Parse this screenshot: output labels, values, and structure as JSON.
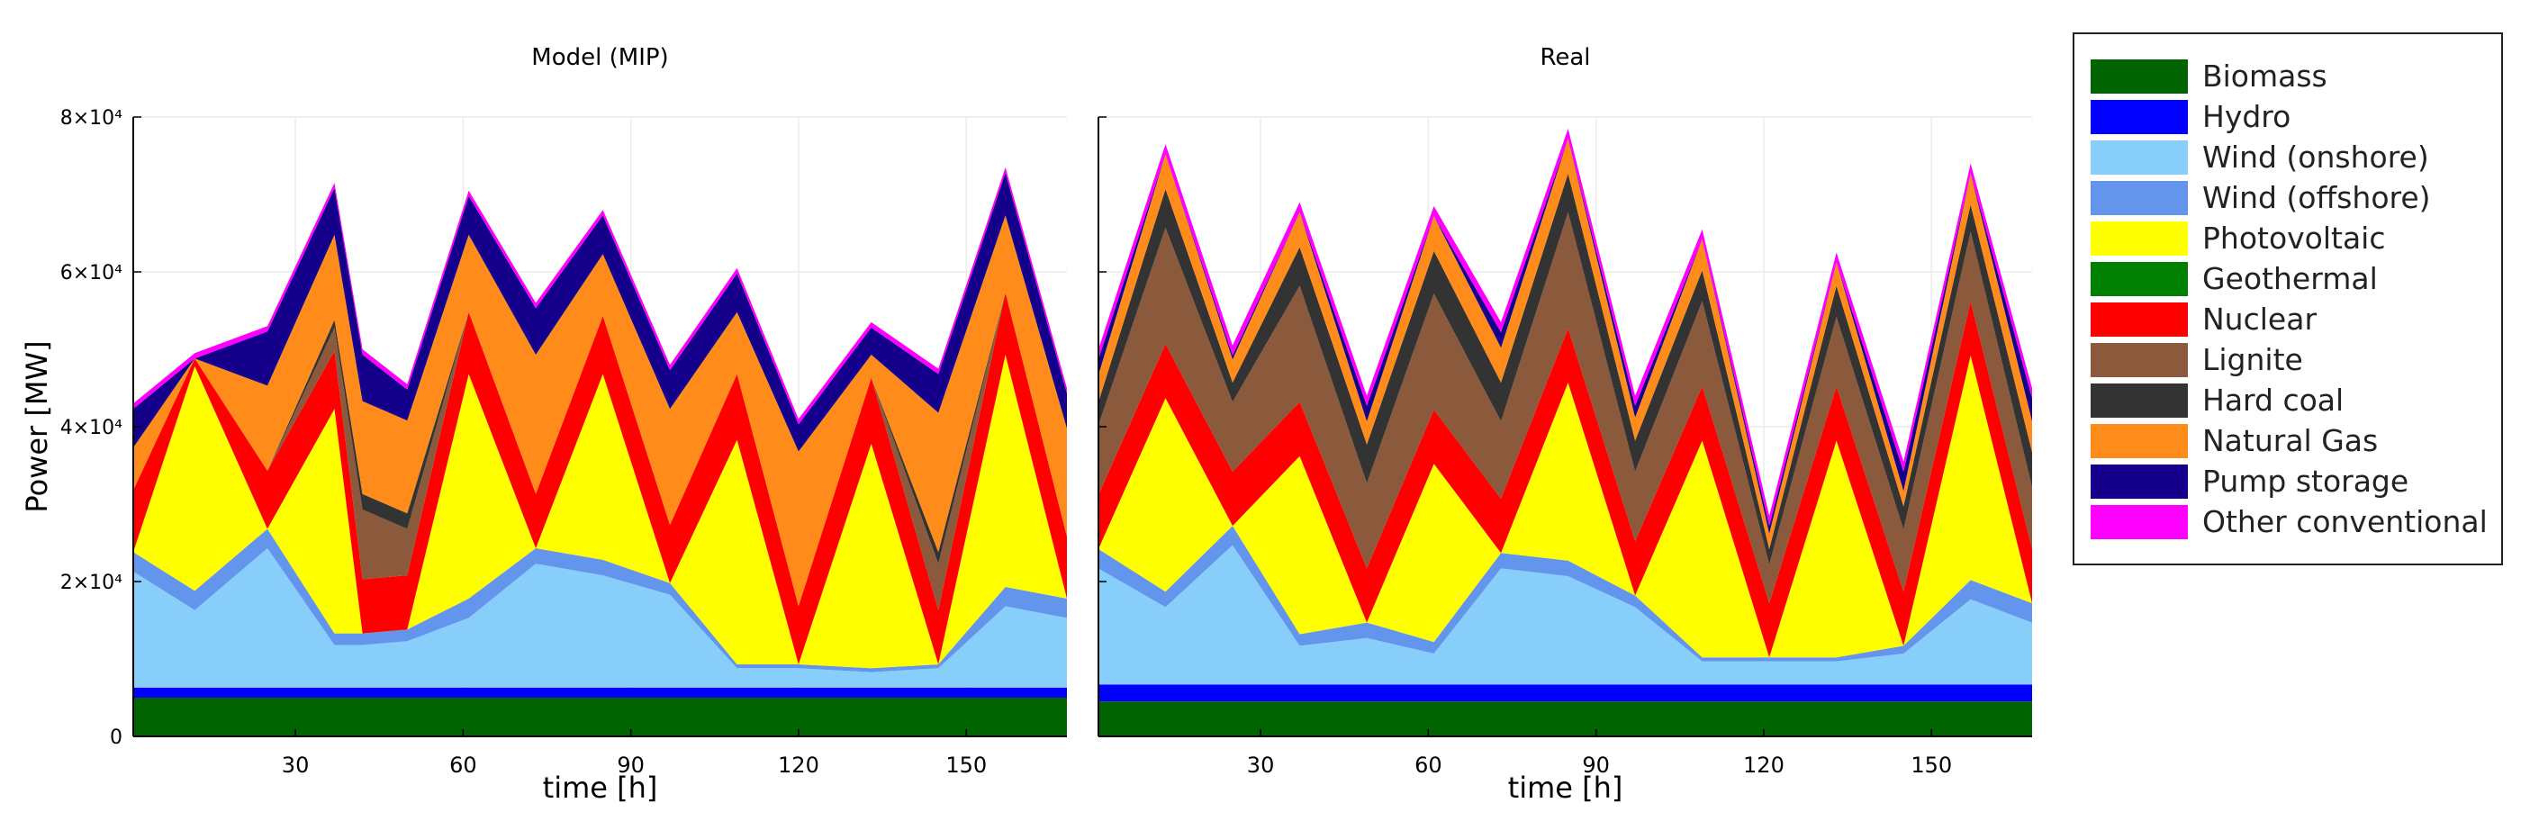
{
  "chart_data": [
    {
      "type": "area",
      "title": "Model (MIP)",
      "xlabel": "time [h]",
      "ylabel": "Power [MW]",
      "ylim": [
        0,
        80000
      ],
      "xlim": [
        1,
        168
      ],
      "x_ticks": [
        30,
        60,
        90,
        120,
        150
      ],
      "y_ticks": [
        0,
        20000,
        40000,
        60000,
        80000
      ],
      "y_tick_labels": [
        "0",
        "2×10⁴",
        "4×10⁴",
        "6×10⁴",
        "8×10⁴"
      ],
      "grid": true,
      "stacked": true,
      "x": [
        1,
        12,
        25,
        37,
        42,
        50,
        61,
        73,
        85,
        97,
        109,
        120,
        133,
        145,
        157,
        168
      ],
      "series": [
        {
          "name": "Biomass",
          "values": [
            5000,
            5000,
            5000,
            5000,
            5000,
            5000,
            5000,
            5000,
            5000,
            5000,
            5000,
            5000,
            5000,
            5000,
            5000,
            5000
          ]
        },
        {
          "name": "Hydro",
          "values": [
            1300,
            1300,
            1300,
            1300,
            1300,
            1300,
            1300,
            1300,
            1300,
            1300,
            1300,
            1300,
            1300,
            1300,
            1300,
            1300
          ]
        },
        {
          "name": "Wind (onshore)",
          "values": [
            15000,
            10000,
            18000,
            5500,
            5500,
            6000,
            9000,
            16000,
            14500,
            12000,
            2500,
            2500,
            2000,
            2500,
            10500,
            9000
          ]
        },
        {
          "name": "Wind (offshore)",
          "values": [
            2500,
            2500,
            2500,
            1500,
            1500,
            1500,
            2500,
            2000,
            2000,
            1500,
            500,
            500,
            500,
            500,
            2500,
            2500
          ]
        },
        {
          "name": "Photovoltaic",
          "values": [
            0,
            29000,
            0,
            29000,
            0,
            0,
            29000,
            0,
            24000,
            0,
            29000,
            0,
            29000,
            0,
            30000,
            0
          ]
        },
        {
          "name": "Geothermal",
          "values": [
            0,
            0,
            0,
            0,
            0,
            0,
            0,
            0,
            0,
            0,
            0,
            0,
            0,
            0,
            0,
            0
          ]
        },
        {
          "name": "Nuclear",
          "values": [
            8000,
            1000,
            7500,
            7500,
            7000,
            7000,
            8000,
            7000,
            7500,
            7500,
            8500,
            7500,
            8500,
            7000,
            8000,
            8000
          ]
        },
        {
          "name": "Lignite",
          "values": [
            0,
            0,
            0,
            3000,
            9000,
            6000,
            0,
            0,
            0,
            0,
            0,
            0,
            0,
            6000,
            0,
            0
          ]
        },
        {
          "name": "Hard coal",
          "values": [
            0,
            0,
            0,
            1000,
            2000,
            2000,
            0,
            0,
            0,
            0,
            0,
            0,
            0,
            1500,
            0,
            0
          ]
        },
        {
          "name": "Natural Gas",
          "values": [
            5500,
            0,
            11000,
            11000,
            12000,
            12000,
            10000,
            18000,
            8000,
            15000,
            8000,
            20000,
            3000,
            18000,
            10000,
            14000
          ]
        },
        {
          "name": "Pump storage",
          "values": [
            5000,
            0,
            7000,
            6000,
            6000,
            4000,
            5000,
            6000,
            5000,
            5000,
            5000,
            3500,
            3500,
            5000,
            5500,
            4500
          ]
        },
        {
          "name": "Other conventional",
          "values": [
            700,
            700,
            700,
            700,
            700,
            700,
            700,
            700,
            700,
            700,
            700,
            700,
            700,
            700,
            700,
            700
          ]
        }
      ]
    },
    {
      "type": "area",
      "title": "Real",
      "xlabel": "time [h]",
      "ylabel": "",
      "ylim": [
        0,
        80000
      ],
      "xlim": [
        1,
        168
      ],
      "x_ticks": [
        30,
        60,
        90,
        120,
        150
      ],
      "y_ticks": [
        0,
        20000,
        40000,
        60000,
        80000
      ],
      "y_tick_labels": [],
      "grid": true,
      "stacked": true,
      "x": [
        1,
        13,
        25,
        37,
        49,
        61,
        73,
        85,
        97,
        109,
        121,
        133,
        145,
        157,
        168
      ],
      "series": [
        {
          "name": "Biomass",
          "values": [
            4500,
            4500,
            4500,
            4500,
            4500,
            4500,
            4500,
            4500,
            4500,
            4500,
            4500,
            4500,
            4500,
            4500,
            4500
          ]
        },
        {
          "name": "Hydro",
          "values": [
            2200,
            2200,
            2200,
            2200,
            2200,
            2200,
            2200,
            2200,
            2200,
            2200,
            2200,
            2200,
            2200,
            2200,
            2200
          ]
        },
        {
          "name": "Wind (onshore)",
          "values": [
            15000,
            10000,
            18000,
            5000,
            6000,
            4000,
            15000,
            14000,
            10000,
            3000,
            3000,
            3000,
            4000,
            11000,
            8000
          ]
        },
        {
          "name": "Wind (offshore)",
          "values": [
            2500,
            2000,
            2500,
            1500,
            2000,
            1500,
            2000,
            2000,
            1500,
            500,
            500,
            500,
            1000,
            2500,
            2500
          ]
        },
        {
          "name": "Photovoltaic",
          "values": [
            0,
            25000,
            0,
            23000,
            0,
            23000,
            0,
            23000,
            0,
            28000,
            0,
            28000,
            0,
            29000,
            0
          ]
        },
        {
          "name": "Geothermal",
          "values": [
            0,
            0,
            0,
            0,
            0,
            0,
            0,
            0,
            0,
            0,
            0,
            0,
            0,
            0,
            0
          ]
        },
        {
          "name": "Nuclear",
          "values": [
            7000,
            7000,
            7000,
            7000,
            7000,
            7000,
            7000,
            7000,
            7000,
            7000,
            7000,
            7000,
            7000,
            7000,
            7000
          ]
        },
        {
          "name": "Lignite",
          "values": [
            9000,
            15000,
            9000,
            15000,
            11000,
            15000,
            10000,
            15000,
            9000,
            11000,
            5000,
            9000,
            8000,
            9000,
            8000
          ]
        },
        {
          "name": "Hard coal",
          "values": [
            3000,
            5000,
            2500,
            5000,
            5000,
            5500,
            5000,
            5000,
            4000,
            4000,
            2000,
            4000,
            3000,
            3500,
            4500
          ]
        },
        {
          "name": "Natural Gas",
          "values": [
            3500,
            4500,
            3000,
            4500,
            3000,
            4500,
            4500,
            4500,
            3000,
            4000,
            2000,
            3000,
            2000,
            4000,
            4000
          ]
        },
        {
          "name": "Pump storage",
          "values": [
            2000,
            0,
            500,
            0,
            2000,
            0,
            2000,
            0,
            1500,
            0,
            1000,
            0,
            2500,
            0,
            3000
          ]
        },
        {
          "name": "Other conventional",
          "values": [
            1300,
            1300,
            1300,
            1300,
            1300,
            1300,
            1300,
            1300,
            1300,
            1300,
            1300,
            1300,
            1300,
            1300,
            1300
          ]
        }
      ]
    }
  ],
  "legend": {
    "placement": "right",
    "items": [
      {
        "label": "Biomass",
        "color": "#006400"
      },
      {
        "label": "Hydro",
        "color": "#0000ff"
      },
      {
        "label": "Wind (onshore)",
        "color": "#87cefa"
      },
      {
        "label": "Wind (offshore)",
        "color": "#6495ed"
      },
      {
        "label": "Photovoltaic",
        "color": "#ffff00"
      },
      {
        "label": "Geothermal",
        "color": "#008000"
      },
      {
        "label": "Nuclear",
        "color": "#ff0000"
      },
      {
        "label": "Lignite",
        "color": "#8b5a3c"
      },
      {
        "label": "Hard coal",
        "color": "#333333"
      },
      {
        "label": "Natural Gas",
        "color": "#ff8c1a"
      },
      {
        "label": "Pump storage",
        "color": "#14008b"
      },
      {
        "label": "Other conventional",
        "color": "#ff00ff"
      }
    ]
  }
}
